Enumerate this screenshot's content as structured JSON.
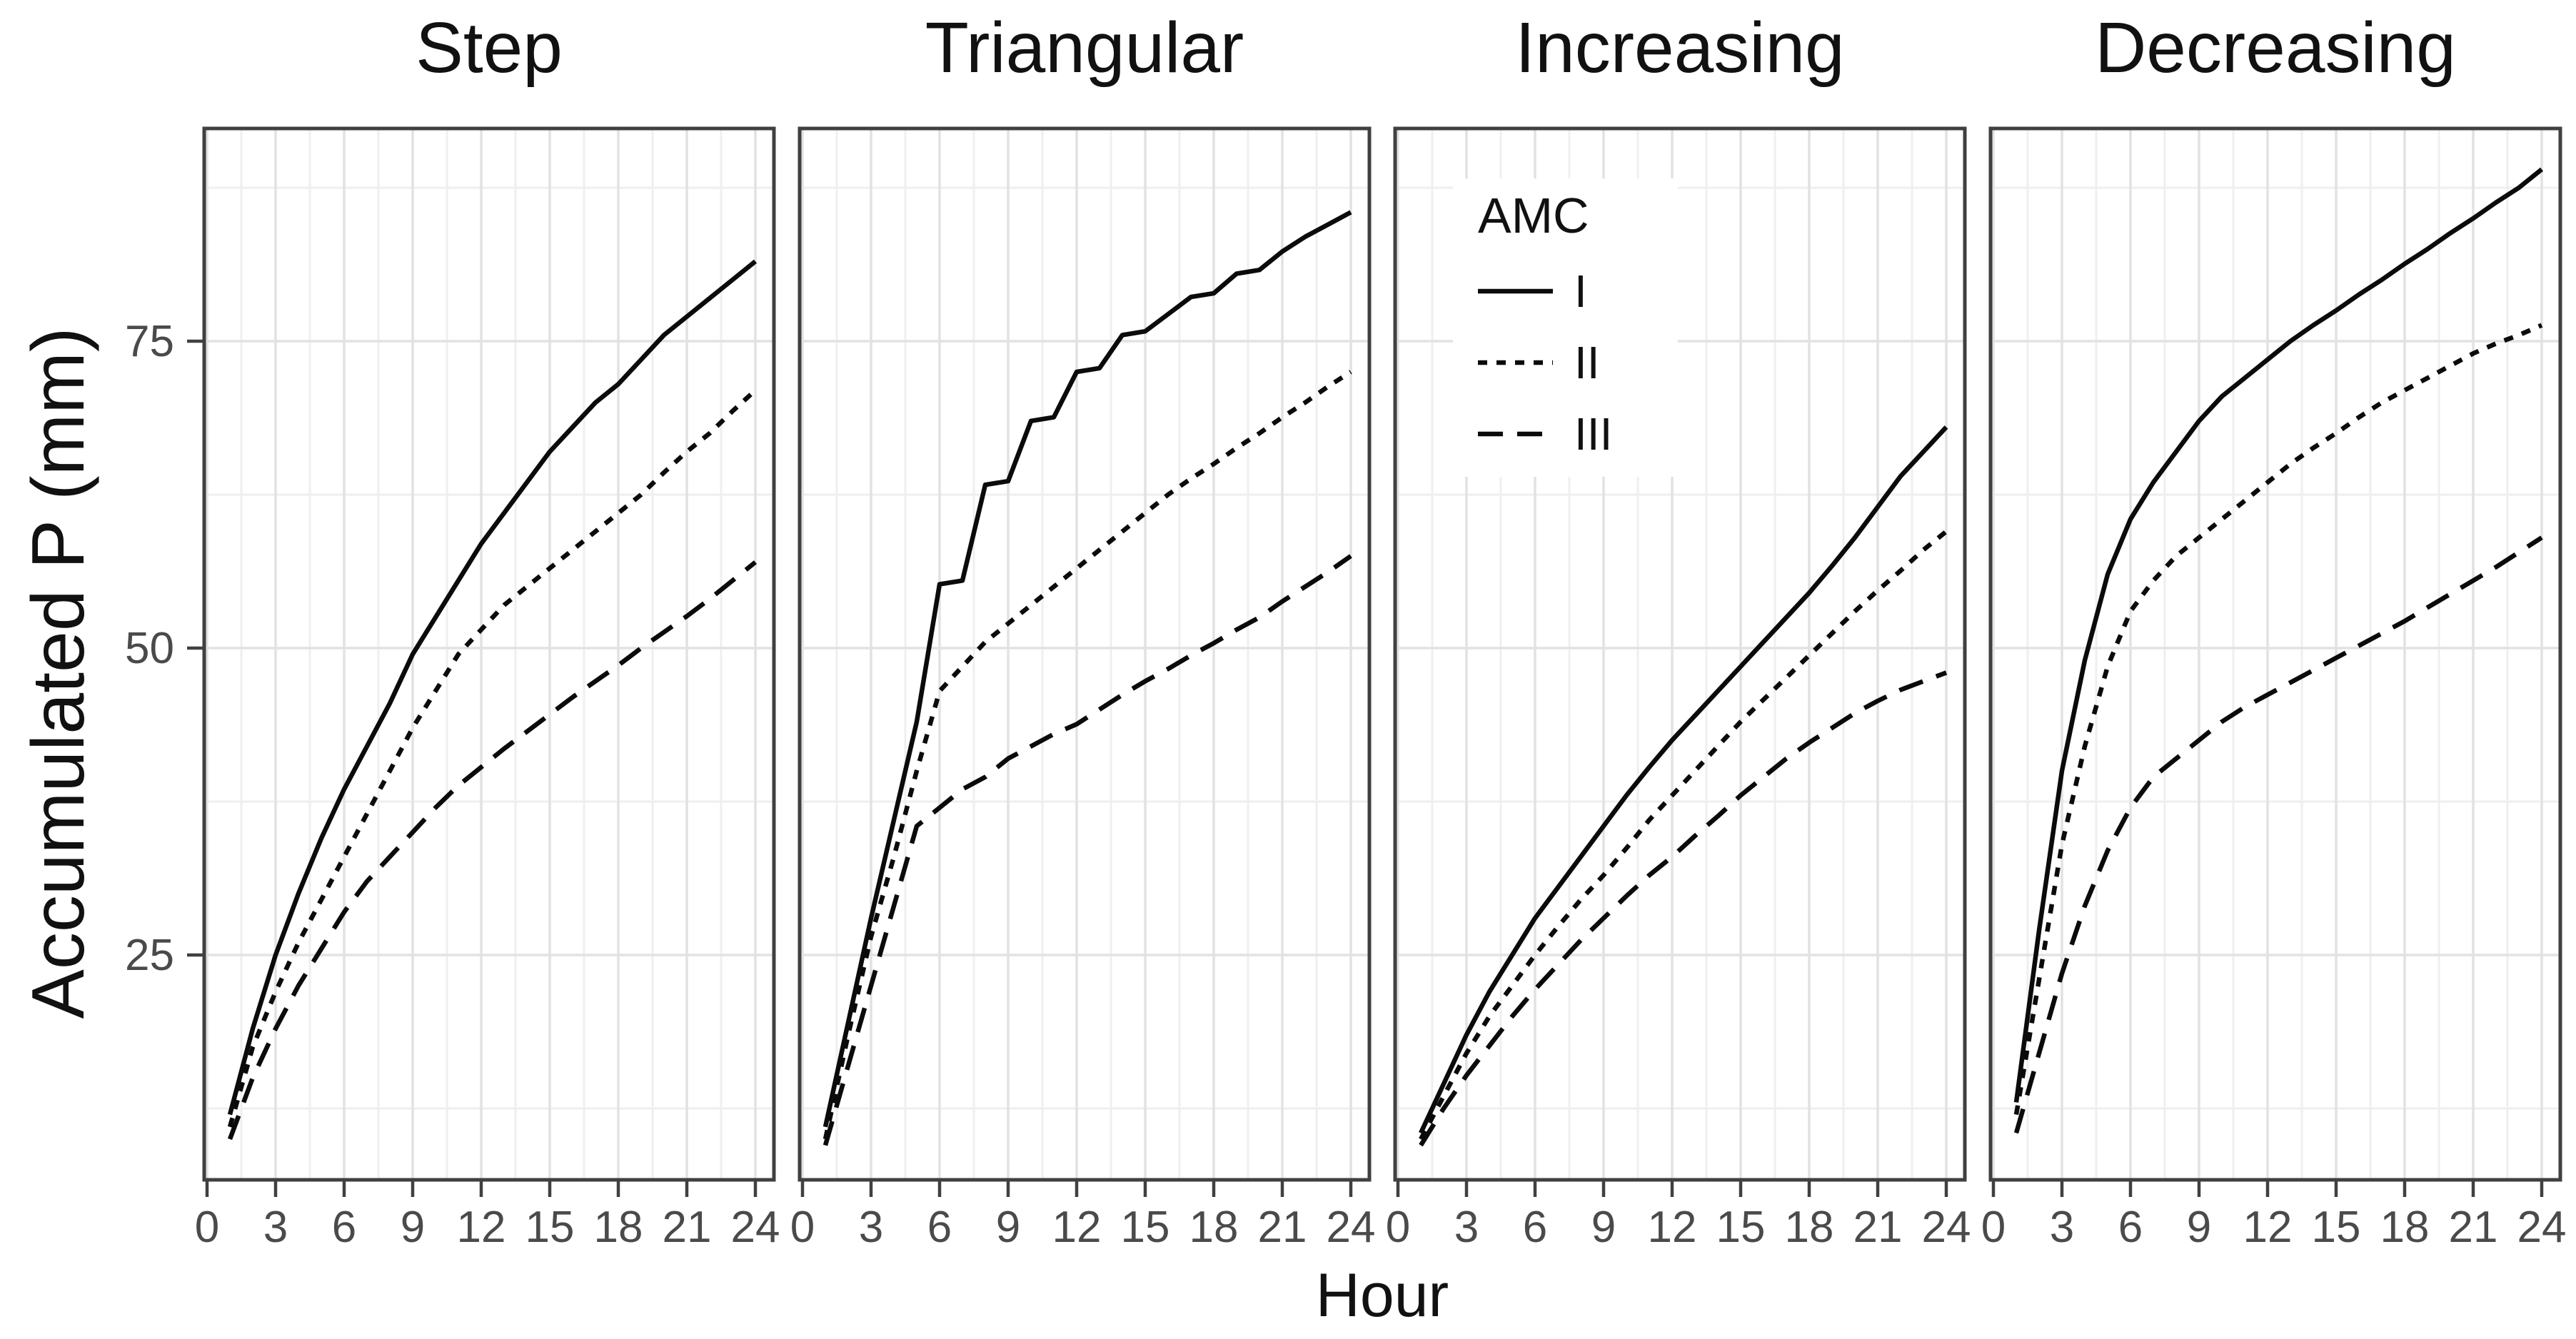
{
  "chart_data": {
    "type": "line",
    "title": "",
    "xlabel": "Hour",
    "ylabel": "Accumulated P (mm)",
    "x": [
      1,
      2,
      3,
      4,
      5,
      6,
      7,
      8,
      9,
      10,
      11,
      12,
      13,
      14,
      15,
      16,
      17,
      18,
      19,
      20,
      21,
      22,
      23,
      24
    ],
    "x_ticks": [
      0,
      3,
      6,
      9,
      12,
      15,
      18,
      21,
      24
    ],
    "y_ticks": [
      25,
      50,
      75
    ],
    "y_minor_ticks": [
      12.5,
      37.5,
      62.5,
      87.5
    ],
    "x_minor_ticks": [
      1.5,
      4.5,
      7.5,
      10.5,
      13.5,
      16.5,
      19.5,
      22.5
    ],
    "xlim": [
      -0.15,
      24.8
    ],
    "ylim": [
      6.7,
      92.3
    ],
    "grid": "major and minor, light gray, on white panels",
    "legend": {
      "title": "AMC",
      "position": "inside top-left of Increasing panel",
      "entries": [
        {
          "label": "I",
          "style": "solid"
        },
        {
          "label": "II",
          "style": "dotted"
        },
        {
          "label": "III",
          "style": "dashed"
        }
      ]
    },
    "facets": [
      {
        "title": "Step",
        "series": [
          {
            "name": "I",
            "values": [
              12,
              19,
              25,
              30,
              34.5,
              38.5,
              42,
              45.5,
              49.5,
              52.5,
              55.5,
              58.5,
              61,
              63.5,
              66,
              68,
              70,
              71.5,
              73.5,
              75.5,
              77,
              78.5,
              80,
              81.5
            ]
          },
          {
            "name": "II",
            "values": [
              11,
              17.5,
              22,
              26,
              29.5,
              33,
              36.5,
              40,
              43.5,
              46.5,
              49.5,
              51.5,
              53.5,
              55,
              56.5,
              58,
              59.5,
              61,
              62.5,
              64.3,
              66,
              67.5,
              69.3,
              71
            ]
          },
          {
            "name": "III",
            "values": [
              10,
              15,
              19,
              22.5,
              25.5,
              28.5,
              31,
              33,
              35,
              37,
              38.8,
              40.3,
              41.8,
              43.2,
              44.6,
              46,
              47.3,
              48.6,
              50,
              51.3,
              52.6,
              54,
              55.5,
              57
            ]
          }
        ]
      },
      {
        "title": "Triangular",
        "series": [
          {
            "name": "I",
            "values": [
              11,
              19.5,
              28,
              36,
              44,
              55.2,
              55.5,
              63.3,
              63.6,
              68.5,
              68.8,
              72.5,
              72.8,
              75.5,
              75.8,
              77.2,
              78.6,
              78.9,
              80.5,
              80.8,
              82.3,
              83.5,
              84.5,
              85.5
            ]
          },
          {
            "name": "II",
            "values": [
              10,
              18.5,
              26.5,
              33,
              40,
              46.5,
              48.5,
              50.5,
              52,
              53.5,
              55,
              56.5,
              58,
              59.5,
              61,
              62.5,
              63.8,
              65,
              66.3,
              67.5,
              68.8,
              70,
              71.3,
              72.5
            ]
          },
          {
            "name": "III",
            "values": [
              9.5,
              16,
              22.5,
              29,
              35.5,
              37,
              38.5,
              39.5,
              41,
              42,
              43,
              43.8,
              45,
              46.2,
              47.3,
              48.3,
              49.4,
              50.4,
              51.5,
              52.5,
              53.8,
              55,
              56.2,
              57.5
            ]
          }
        ]
      },
      {
        "title": "Increasing",
        "series": [
          {
            "name": "I",
            "values": [
              10.5,
              14.5,
              18.5,
              22,
              25,
              28,
              30.5,
              33,
              35.5,
              38,
              40.3,
              42.5,
              44.5,
              46.5,
              48.5,
              50.5,
              52.5,
              54.5,
              56.7,
              59,
              61.5,
              64,
              66,
              68
            ]
          },
          {
            "name": "II",
            "values": [
              10,
              13.5,
              17,
              20,
              22.5,
              25,
              27.3,
              29.5,
              31.5,
              33.7,
              36,
              38,
              40,
              42,
              44,
              45.8,
              47.6,
              49.4,
              51.2,
              53,
              54.7,
              56.3,
              58,
              59.5
            ]
          },
          {
            "name": "III",
            "values": [
              9.5,
              12.5,
              15.2,
              17.6,
              20,
              22.2,
              24.2,
              26.2,
              28,
              29.8,
              31.5,
              33,
              34.7,
              36.3,
              38,
              39.5,
              41,
              42.3,
              43.5,
              44.7,
              45.7,
              46.6,
              47.3,
              48
            ]
          }
        ]
      },
      {
        "title": "Decreasing",
        "series": [
          {
            "name": "I",
            "values": [
              13,
              27,
              40,
              49,
              56,
              60.5,
              63.5,
              66,
              68.5,
              70.5,
              72,
              73.5,
              75,
              76.3,
              77.5,
              78.8,
              80,
              81.3,
              82.5,
              83.8,
              85,
              86.3,
              87.5,
              89
            ]
          },
          {
            "name": "II",
            "values": [
              12,
              23,
              34,
              42,
              48.5,
              53,
              55.5,
              57.5,
              59,
              60.5,
              62,
              63.5,
              65,
              66.3,
              67.5,
              68.8,
              70,
              71,
              72,
              73,
              74,
              74.8,
              75.5,
              76.3
            ]
          },
          {
            "name": "III",
            "values": [
              10.5,
              17,
              23.5,
              29,
              33.5,
              37,
              39.5,
              41,
              42.5,
              44,
              45.2,
              46.2,
              47.2,
              48.2,
              49.2,
              50.2,
              51.2,
              52.2,
              53.3,
              54.4,
              55.5,
              56.6,
              57.8,
              59
            ]
          }
        ]
      }
    ]
  },
  "styles": {
    "line_color": "#0b0b0b",
    "grid_major": "#e2e2e2",
    "grid_minor": "#efefef",
    "panel_border": "#404040",
    "tick_color": "#404040",
    "tick_label_color": "#4a4a4a",
    "text_color": "#111111",
    "legend_bg": "#ffffff",
    "dash_solid": "",
    "dash_dotted": "13 13",
    "dash_dashed": "35 20"
  }
}
